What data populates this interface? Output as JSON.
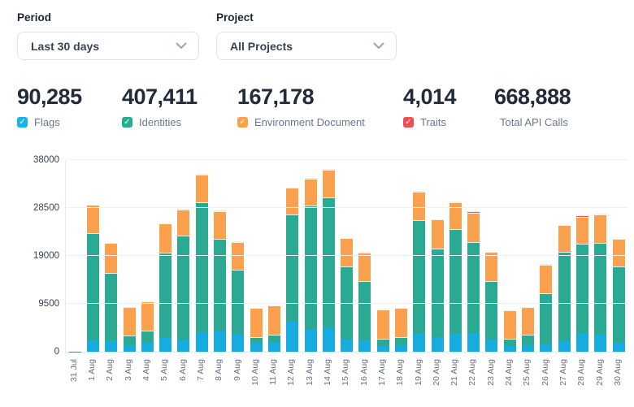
{
  "controls": {
    "period": {
      "label": "Period",
      "value": "Last 30 days"
    },
    "project": {
      "label": "Project",
      "value": "All Projects"
    }
  },
  "stats": [
    {
      "value": "90,285",
      "label": "Flags",
      "checkbox_color": "#1fb2e9",
      "checked": true
    },
    {
      "value": "407,411",
      "label": "Identities",
      "checkbox_color": "#27ab93",
      "checked": true
    },
    {
      "value": "167,178",
      "label": "Environment Document",
      "checkbox_color": "#fca14e",
      "checked": true
    },
    {
      "value": "4,014",
      "label": "Traits",
      "checkbox_color": "#ef4e53",
      "checked": true
    },
    {
      "value": "668,888",
      "label": "Total API Calls",
      "checkbox_color": null,
      "checked": null
    }
  ],
  "chart_data": {
    "type": "bar",
    "stacked": true,
    "grid": true,
    "ylim": [
      0,
      38000
    ],
    "yticks": [
      0,
      9500,
      19000,
      28500,
      38000
    ],
    "categories": [
      "31 Jul",
      "1 Aug",
      "2 Aug",
      "3 Aug",
      "4 Aug",
      "5 Aug",
      "6 Aug",
      "7 Aug",
      "8 Aug",
      "9 Aug",
      "10 Aug",
      "11 Aug",
      "12 Aug",
      "13 Aug",
      "14 Aug",
      "15 Aug",
      "16 Aug",
      "17 Aug",
      "18 Aug",
      "19 Aug",
      "20 Aug",
      "21 Aug",
      "22 Aug",
      "23 Aug",
      "24 Aug",
      "25 Aug",
      "26 Aug",
      "27 Aug",
      "28 Aug",
      "29 Aug",
      "30 Aug"
    ],
    "series": [
      {
        "name": "Flags",
        "color": "#17ace0",
        "values": [
          30,
          2200,
          2270,
          1370,
          1740,
          2690,
          2480,
          3800,
          4060,
          3430,
          1850,
          2000,
          5910,
          4540,
          4700,
          2380,
          2220,
          1210,
          1320,
          3590,
          2900,
          3540,
          3640,
          2380,
          1160,
          1270,
          1480,
          2160,
          3750,
          3430,
          1790
        ]
      },
      {
        "name": "Identities",
        "color": "#2aaa92",
        "values": [
          150,
          21350,
          13400,
          1850,
          2430,
          16950,
          20480,
          25900,
          18320,
          12770,
          1000,
          1430,
          21380,
          24440,
          25860,
          14510,
          11870,
          1430,
          1640,
          22540,
          17630,
          20740,
          18100,
          11560,
          1480,
          2060,
          10130,
          17580,
          17730,
          18210,
          15100
        ]
      },
      {
        "name": "Environment Document",
        "color": "#fba04c",
        "values": [
          0,
          5650,
          5850,
          5650,
          5800,
          5800,
          5250,
          5400,
          5500,
          5600,
          5860,
          5750,
          5280,
          5400,
          5450,
          5600,
          5600,
          5750,
          5700,
          5600,
          5650,
          5400,
          5820,
          5850,
          5650,
          5590,
          5600,
          5440,
          5280,
          5600,
          5540
        ]
      },
      {
        "name": "Traits",
        "color": "#f0595c",
        "values": [
          0,
          0,
          0,
          0,
          0,
          0,
          130,
          210,
          140,
          150,
          0,
          0,
          0,
          140,
          150,
          0,
          160,
          0,
          0,
          150,
          0,
          140,
          250,
          0,
          0,
          0,
          160,
          0,
          370,
          150,
          0
        ]
      }
    ]
  }
}
